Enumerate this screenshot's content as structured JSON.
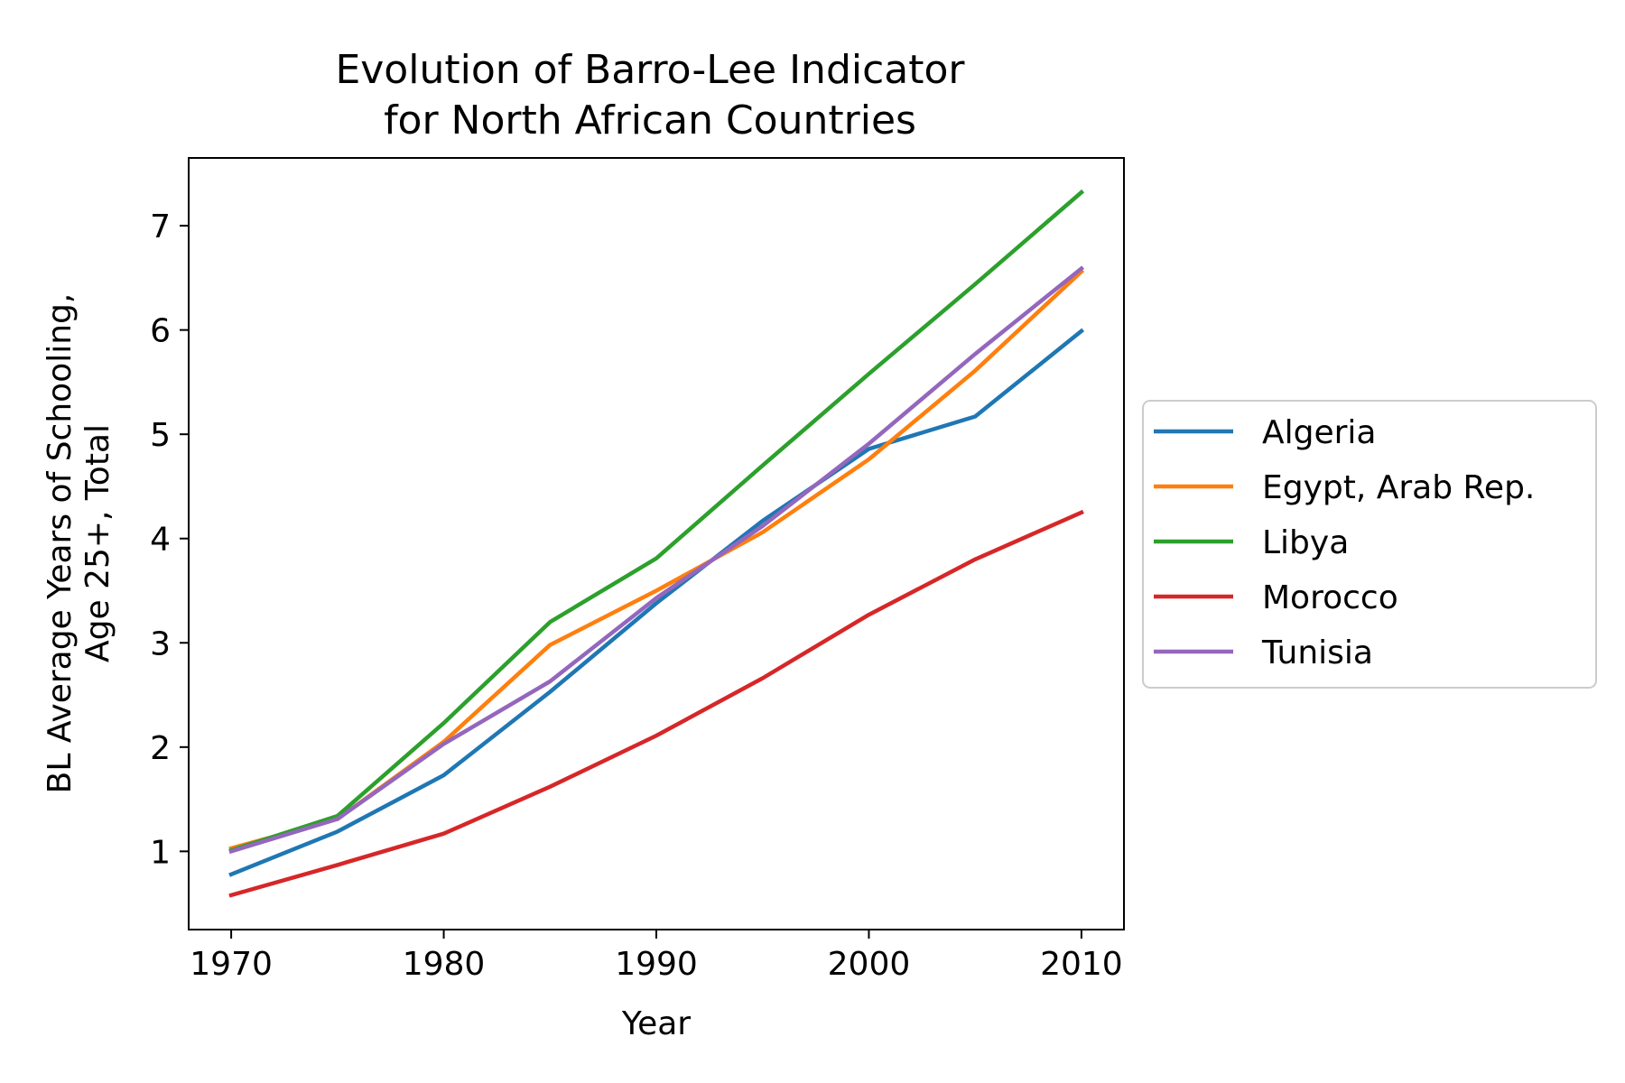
{
  "chart_data": {
    "type": "line",
    "title_lines": [
      "Evolution of Barro-Lee Indicator",
      "for North African Countries"
    ],
    "xlabel": "Year",
    "ylabel_lines": [
      "BL Average Years of Schooling,",
      "Age 25+, Total"
    ],
    "x": [
      1970,
      1975,
      1980,
      1985,
      1990,
      1995,
      2000,
      2005,
      2010
    ],
    "xticks": [
      1970,
      1980,
      1990,
      2000,
      2010
    ],
    "yticks": [
      1,
      2,
      3,
      4,
      5,
      6,
      7
    ],
    "xlim": [
      1968,
      2012
    ],
    "ylim": [
      0.25,
      7.65
    ],
    "grid": false,
    "legend_position": "outside-right",
    "series": [
      {
        "name": "Algeria",
        "color": "#1f77b4",
        "values": [
          0.78,
          1.19,
          1.73,
          2.53,
          3.38,
          4.17,
          4.86,
          5.17,
          5.99
        ]
      },
      {
        "name": "Egypt, Arab Rep.",
        "color": "#ff7f0e",
        "values": [
          1.03,
          1.31,
          2.05,
          2.98,
          3.5,
          4.06,
          4.76,
          5.61,
          6.56
        ]
      },
      {
        "name": "Libya",
        "color": "#2ca02c",
        "values": [
          1.01,
          1.34,
          2.23,
          3.2,
          3.81,
          4.7,
          5.58,
          6.44,
          7.32
        ]
      },
      {
        "name": "Morocco",
        "color": "#d62728",
        "values": [
          0.58,
          0.87,
          1.17,
          1.62,
          2.11,
          2.66,
          3.27,
          3.8,
          4.25
        ]
      },
      {
        "name": "Tunisia",
        "color": "#9467bd",
        "values": [
          1.0,
          1.31,
          2.03,
          2.63,
          3.43,
          4.12,
          4.91,
          5.77,
          6.59
        ]
      }
    ]
  }
}
